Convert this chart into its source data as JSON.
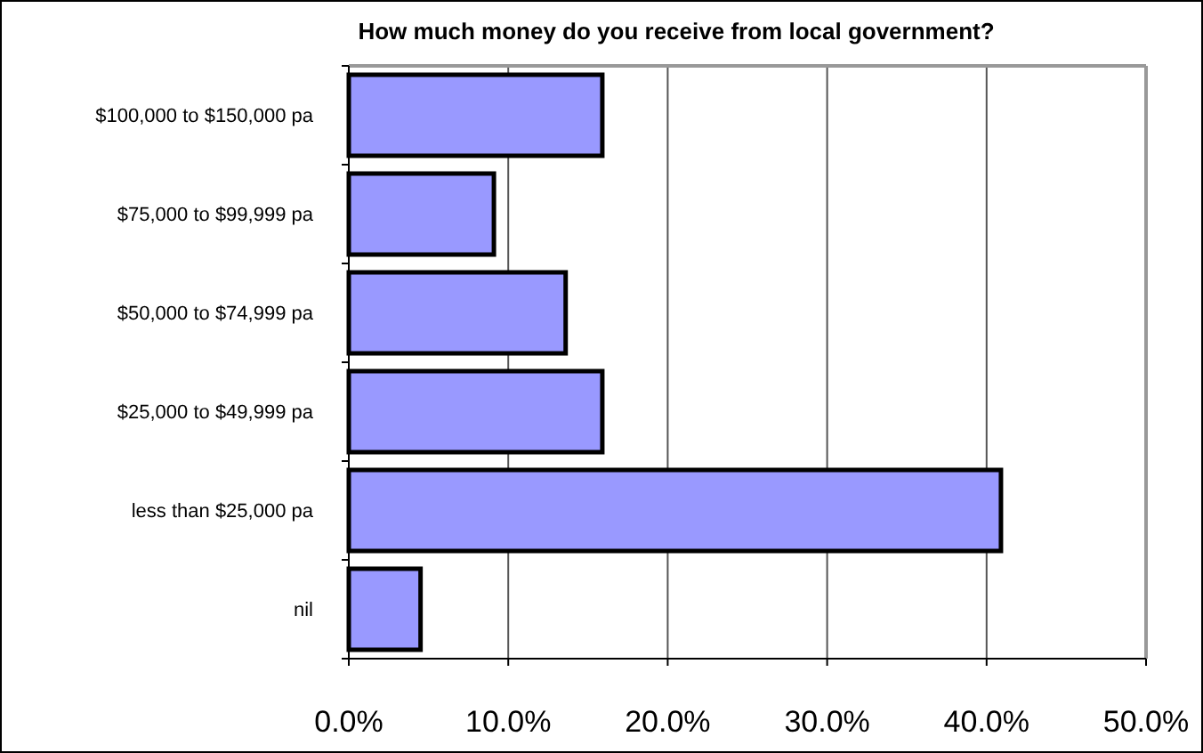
{
  "chart_data": {
    "type": "bar",
    "orientation": "horizontal",
    "title": "How much money do you receive from local government?",
    "categories": [
      "$100,000 to $150,000 pa",
      "$75,000 to $99,999 pa",
      "$50,000 to $74,999 pa",
      "$25,000 to $49,999 pa",
      "less than $25,000 pa",
      "nil"
    ],
    "values": [
      15.9,
      9.1,
      13.6,
      15.9,
      40.9,
      4.5
    ],
    "color": "#9999ff",
    "xlim": [
      0,
      50
    ],
    "xticks": [
      {
        "value": 0,
        "label": "0.0%"
      },
      {
        "value": 10,
        "label": "10.0%"
      },
      {
        "value": 20,
        "label": "20.0%"
      },
      {
        "value": 30,
        "label": "30.0%"
      },
      {
        "value": 40,
        "label": "40.0%"
      },
      {
        "value": 50,
        "label": "50.0%"
      }
    ],
    "grid": "x"
  }
}
